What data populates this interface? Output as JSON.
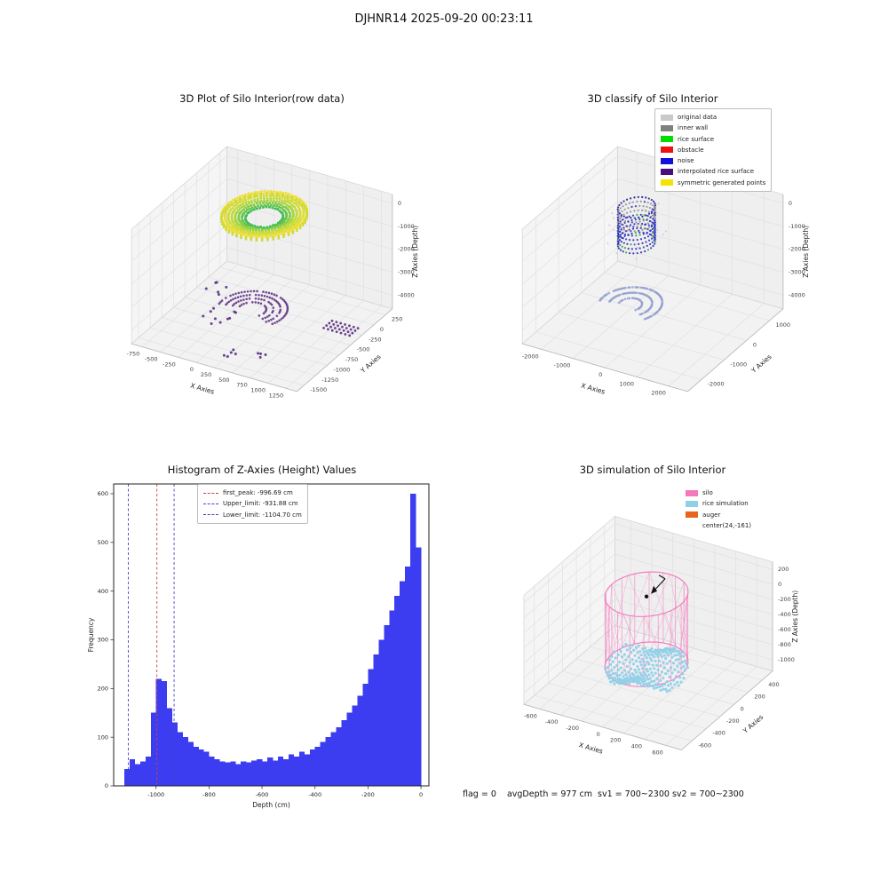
{
  "figure_title": "DJHNR14 2025-09-20 00:23:11",
  "chart_data": [
    {
      "type": "scatter",
      "projection": "3d",
      "title": "3D Plot of Silo Interior(row data)",
      "xlabel": "X Axies",
      "ylabel": "Y Axies",
      "zlabel": "Z Axies (Depth)",
      "xticks": [
        -750,
        -500,
        -250,
        0,
        250,
        500,
        750,
        1000,
        1250
      ],
      "yticks": [
        250,
        0,
        -250,
        -500,
        -750,
        -1000,
        -1250,
        -1500
      ],
      "zticks": [
        0,
        -1000,
        -2000,
        -3000,
        -4000
      ],
      "xlim": [
        -900,
        1400
      ],
      "ylim": [
        -1650,
        400
      ],
      "zlim": [
        -4600,
        400
      ],
      "series": [
        {
          "name": "silo rice surface ring",
          "kind": "torus",
          "center": [
            150,
            -420,
            -150
          ],
          "router": 500,
          "rinner": 220,
          "colors": [
            "#f3df35",
            "#b8d93a",
            "#3fbc4d"
          ]
        },
        {
          "name": "interpolated rice surface arcs",
          "kind": "rings",
          "center": [
            0,
            -450
          ],
          "z": -4400,
          "radii": [
            160,
            240,
            320,
            400
          ],
          "color": "#5a2d81"
        },
        {
          "name": "floor scatter clusters",
          "kind": "clusters",
          "z": -4400,
          "color": "#5a2d81",
          "items": [
            {
              "grid": true,
              "center": [
                1150,
                -320
              ],
              "nx": 7,
              "ny": 4,
              "step": 60
            },
            {
              "grid": false,
              "center": [
                -350,
                -700
              ],
              "n": 10,
              "spread": 480,
              "seed": 3
            },
            {
              "grid": false,
              "center": [
                300,
                -1350
              ],
              "n": 5,
              "spread": 220,
              "seed": 6
            },
            {
              "grid": false,
              "center": [
                650,
                -1250
              ],
              "n": 4,
              "spread": 170,
              "seed": 9
            },
            {
              "grid": false,
              "center": [
                -600,
                -250
              ],
              "n": 6,
              "spread": 320,
              "seed": 12
            }
          ]
        }
      ]
    },
    {
      "type": "scatter",
      "projection": "3d",
      "title": "3D classify of Silo Interior",
      "xlabel": "X Axies",
      "ylabel": "Y Axies",
      "zlabel": "Z Axies (Depth)",
      "xticks": [
        -2000,
        -1000,
        0,
        1000,
        2000
      ],
      "yticks": [
        1000,
        0,
        -1000,
        -2000
      ],
      "zticks": [
        0,
        -1000,
        -2000,
        -3000,
        -4000
      ],
      "xlim": [
        -2600,
        2600
      ],
      "ylim": [
        -2600,
        1600
      ],
      "zlim": [
        -4600,
        400
      ],
      "legend": [
        {
          "label": "original data",
          "color": "#c9c9c9"
        },
        {
          "label": "inner wall",
          "color": "#808080"
        },
        {
          "label": "rice surface",
          "color": "#00dd00"
        },
        {
          "label": "obstacle",
          "color": "#ee1111"
        },
        {
          "label": "noise",
          "color": "#1111dd"
        },
        {
          "label": "interpolated rice surface",
          "color": "#4b0c7e"
        },
        {
          "label": "symmetric generated points",
          "color": "#f2e400"
        }
      ],
      "series": [
        {
          "name": "classified silo wall cluster",
          "kind": "cylinder-dots",
          "center": [
            -780,
            -120
          ],
          "radius": 480,
          "ztop": -50,
          "zbottom": -1600
        },
        {
          "name": "floor interpolated arcs",
          "kind": "rings",
          "center": [
            -1000,
            -100
          ],
          "z": -4400,
          "radii": [
            300,
            550,
            800
          ],
          "color": "#93a0cf"
        }
      ]
    },
    {
      "type": "bar",
      "title": "Histogram of Z-Axies (Height) Values",
      "xlabel": "Depth (cm)",
      "ylabel": "Frequency",
      "bar_color": "#3c3cf0",
      "bin_start": -1120,
      "bin_width": 20,
      "values": [
        35,
        55,
        45,
        50,
        60,
        150,
        220,
        215,
        160,
        130,
        110,
        100,
        90,
        80,
        75,
        70,
        60,
        55,
        50,
        48,
        50,
        45,
        50,
        48,
        52,
        55,
        50,
        58,
        52,
        60,
        55,
        65,
        60,
        70,
        65,
        75,
        80,
        90,
        100,
        110,
        120,
        135,
        150,
        165,
        185,
        210,
        240,
        270,
        300,
        330,
        360,
        390,
        420,
        450,
        600,
        490
      ],
      "xticks": [
        -1000,
        -800,
        -600,
        -400,
        -200,
        0
      ],
      "yticks": [
        0,
        100,
        200,
        300,
        400,
        500,
        600
      ],
      "xlim": [
        -1160,
        30
      ],
      "ylim": [
        0,
        620
      ],
      "lines": [
        {
          "label": "first_peak: -996.69 cm",
          "x": -996.69,
          "color": "#cc4444"
        },
        {
          "label": "Upper_limit: -931.88 cm",
          "x": -931.88,
          "color": "#4444cc"
        },
        {
          "label": "Lower_limit: -1104.70 cm",
          "x": -1104.7,
          "color": "#4444cc"
        }
      ]
    },
    {
      "type": "scatter",
      "projection": "3d",
      "title": "3D simulation of Silo Interior",
      "xlabel": "X Axies",
      "ylabel": "Y Axies",
      "zlabel": "Z Axies (Depth)",
      "xticks": [
        -600,
        -400,
        -200,
        0,
        200,
        400,
        600
      ],
      "yticks": [
        400,
        200,
        0,
        -200,
        -400,
        -600
      ],
      "zticks": [
        200,
        0,
        -200,
        -400,
        -600,
        -800,
        -1000
      ],
      "xlim": [
        -750,
        750
      ],
      "ylim": [
        -750,
        550
      ],
      "zlim": [
        -1150,
        300
      ],
      "legend": [
        {
          "label": "silo",
          "color": "#f478bc"
        },
        {
          "label": "rice simulation",
          "color": "#8fd0e8"
        },
        {
          "label": "auger",
          "color": "#e8641e"
        },
        {
          "label": "center(24,-161)",
          "color": ""
        }
      ],
      "series": [
        {
          "name": "silo wireframe",
          "kind": "cylinder-wire",
          "center": [
            24,
            -161
          ],
          "radius": 330,
          "ztop": 150,
          "zbottom": -780,
          "color": "#f478bc"
        },
        {
          "name": "rice simulation surface",
          "kind": "bumpy-disk",
          "center": [
            24,
            -161
          ],
          "radius": 330,
          "z": -830,
          "amp": 90,
          "color": "#8fd0e8"
        },
        {
          "name": "auger center marker",
          "kind": "auger-dot",
          "pos": [
            24,
            -161,
            120
          ],
          "color": "#111111"
        }
      ],
      "footer": "flag = 0    avgDepth = 977 cm  sv1 = 700~2300 sv2 = 700~2300"
    }
  ]
}
